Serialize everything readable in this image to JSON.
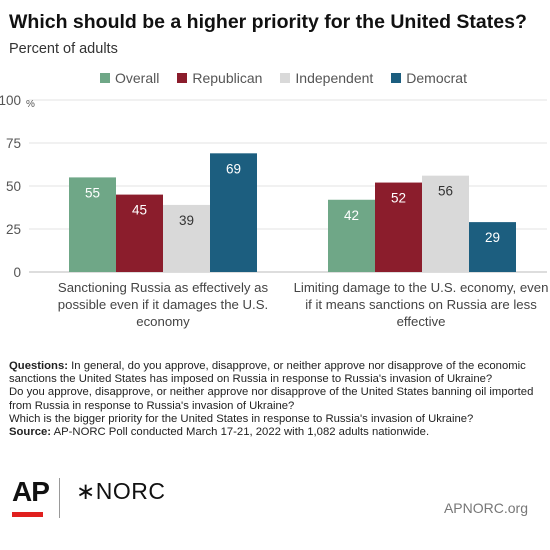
{
  "header": {
    "title": "Which should be a higher priority for the United States?",
    "subtitle": "Percent of adults"
  },
  "legend": [
    {
      "label": "Overall",
      "color": "#6fa787"
    },
    {
      "label": "Republican",
      "color": "#8b1d2c"
    },
    {
      "label": "Independent",
      "color": "#d9d9d9"
    },
    {
      "label": "Democrat",
      "color": "#1c5e7f"
    }
  ],
  "chart_data": {
    "type": "bar",
    "y_unit_label": "%",
    "ylim": [
      0,
      100
    ],
    "yticks": [
      0,
      25,
      50,
      75,
      100
    ],
    "grid": true,
    "legend_position": "top",
    "categories": [
      [
        "Sanctioning Russia as effectively as",
        "possible even if it damages the U.S.",
        "economy"
      ],
      [
        "Limiting damage to the U.S. economy, even",
        "if it means sanctions on Russia are less",
        "effective"
      ]
    ],
    "series": [
      {
        "name": "Overall",
        "color": "#6fa787",
        "label_color": "#ffffff",
        "values": [
          55,
          42
        ]
      },
      {
        "name": "Republican",
        "color": "#8b1d2c",
        "label_color": "#ffffff",
        "values": [
          45,
          52
        ]
      },
      {
        "name": "Independent",
        "color": "#d9d9d9",
        "label_color": "#333333",
        "values": [
          39,
          56
        ]
      },
      {
        "name": "Democrat",
        "color": "#1c5e7f",
        "label_color": "#ffffff",
        "values": [
          69,
          29
        ]
      }
    ]
  },
  "notes": {
    "questions_label": "Questions:",
    "questions_line1": "In general, do you approve, disapprove, or neither approve nor disapprove of the economic sanctions the United States has imposed on Russia in response to Russia's invasion of Ukraine?",
    "questions_line2": "Do you approve, disapprove, or neither approve nor disapprove of the United States banning oil imported from Russia in response to Russia's invasion of Ukraine?",
    "questions_line3": "Which is the bigger priority for the United States in response to Russia's invasion of Ukraine?",
    "source_label": "Source:",
    "source_text": "AP-NORC Poll conducted March 17-21, 2022 with 1,082 adults nationwide."
  },
  "footer": {
    "ap_logo": "AP",
    "norc_logo": "∗NORC",
    "site": "APNORC.org"
  }
}
